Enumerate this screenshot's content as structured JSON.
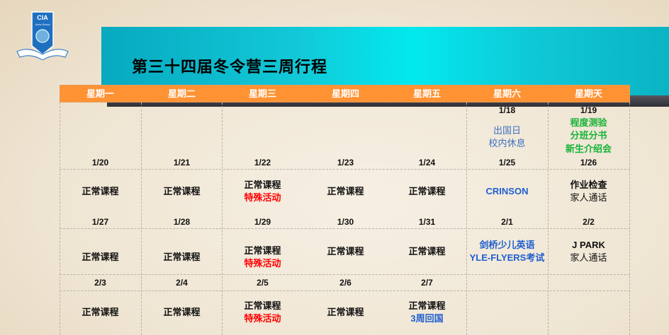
{
  "logo": {
    "text": "CIA",
    "sub": "Junior School",
    "ribbon": "CIA JUNIOR SCHOOL"
  },
  "title": "第三十四届冬令营三周行程",
  "colors": {
    "header": "#ff9233",
    "banner": "#02e9ef",
    "red": "#ff0000",
    "blue": "#1f5fd0",
    "green": "#19b338"
  },
  "days": [
    "星期一",
    "星期二",
    "星期三",
    "星期四",
    "星期五",
    "星期六",
    "星期天"
  ],
  "week0": {
    "dates": [
      "1/18",
      "1/19"
    ],
    "sat": [
      "出国日",
      "校内休息"
    ],
    "sun": [
      "程度测验",
      "分班分书",
      "新生介绍会"
    ]
  },
  "week1": {
    "dates": [
      "1/20",
      "1/21",
      "1/22",
      "1/23",
      "1/24",
      "1/25",
      "1/26"
    ],
    "events": [
      "正常课程",
      "正常课程",
      "正常课程",
      "正常课程",
      "正常课程",
      "CRINSON",
      "作业检查"
    ],
    "wed_extra": "特殊活动",
    "sun_extra": "家人通话"
  },
  "week2": {
    "dates": [
      "1/27",
      "1/28",
      "1/29",
      "1/30",
      "1/31",
      "2/1",
      "2/2"
    ],
    "events": [
      "正常课程",
      "正常课程",
      "正常课程",
      "正常课程",
      "正常课程",
      "剑桥少儿英语",
      "J PARK"
    ],
    "wed_extra": "特殊活动",
    "sat_extra": "YLE-FLYERS考试",
    "sun_extra": "家人通话"
  },
  "week3": {
    "dates": [
      "2/3",
      "2/4",
      "2/5",
      "2/6",
      "2/7"
    ],
    "events": [
      "正常课程",
      "正常课程",
      "正常课程",
      "正常课程",
      "正常课程"
    ],
    "wed_extra": "特殊活动",
    "fri_extra": "3周回国"
  }
}
